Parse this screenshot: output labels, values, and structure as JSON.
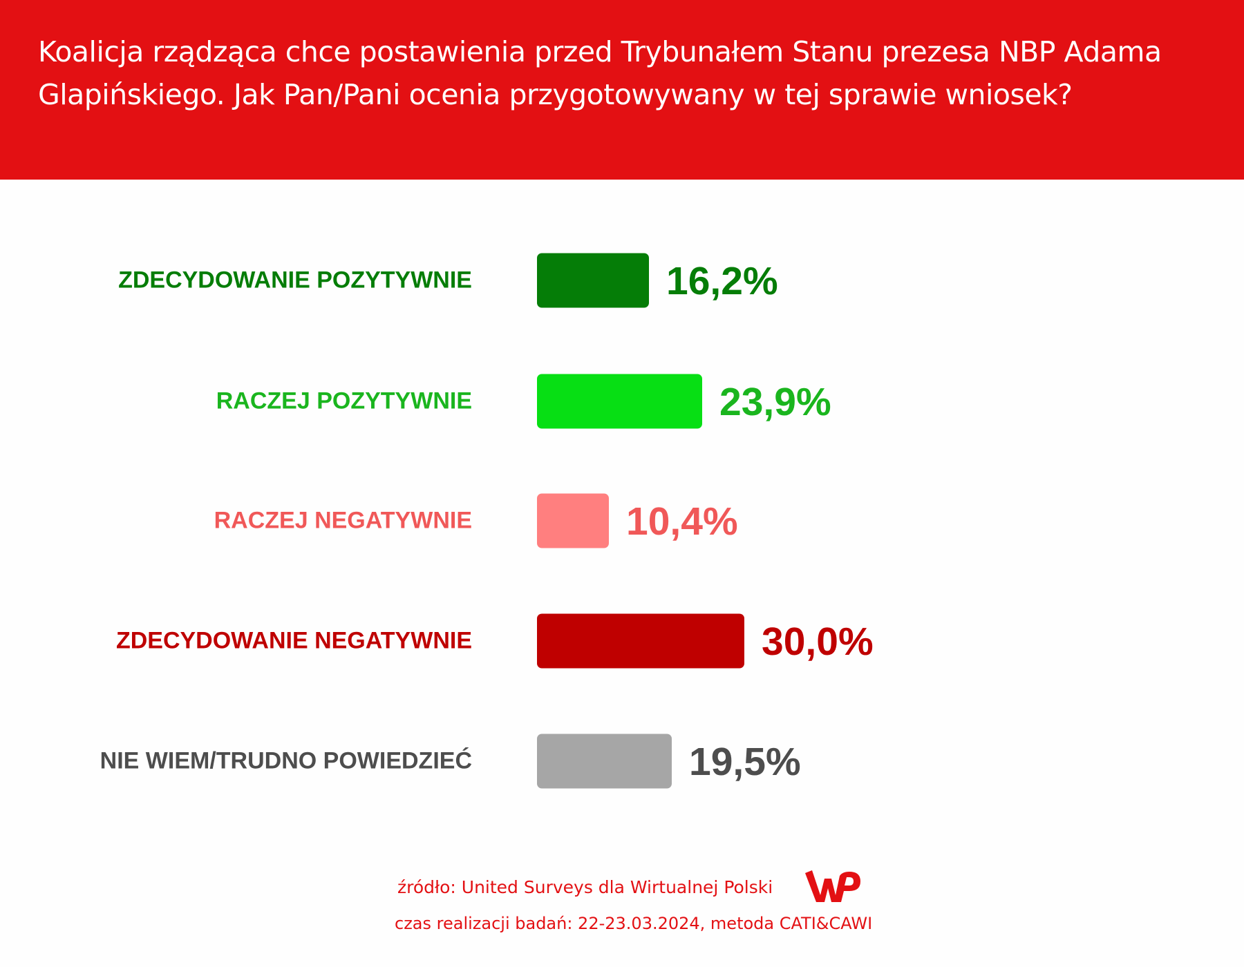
{
  "title": "Koalicja rządząca chce postawienia przed Trybunałem Stanu prezesa NBP Adama Glapińskiego. Jak Pan/Pani ocenia przygotowywany w tej sprawie wniosek?",
  "chart_data": {
    "type": "bar",
    "orientation": "horizontal",
    "title": "Koalicja rządząca chce postawienia przed Trybunałem Stanu prezesa NBP Adama Glapińskiego. Jak Pan/Pani ocenia przygotowywany w tej sprawie wniosek?",
    "categories": [
      "ZDECYDOWANIE POZYTYWNIE",
      "RACZEJ POZYTYWNIE",
      "RACZEJ NEGATYWNIE",
      "ZDECYDOWANIE NEGATYWNIE",
      "NIE WIEM/TRUDNO POWIEDZIEĆ"
    ],
    "values": [
      16.2,
      23.9,
      10.4,
      30.0,
      19.5
    ],
    "value_labels": [
      "16,2%",
      "23,9%",
      "10,4%",
      "30,0%",
      "19,5%"
    ],
    "unit": "%",
    "bar_colors": [
      "#057d07",
      "#07df14",
      "#ff7f7f",
      "#bf0000",
      "#a6a6a6"
    ],
    "text_colors": [
      "#057d07",
      "#1ab51e",
      "#f05858",
      "#bf0000",
      "#4d4d4d"
    ],
    "xlabel": "",
    "ylabel": "",
    "grid": false
  },
  "footer": {
    "source": "źródło: United Surveys dla Wirtualnej Polski",
    "details": "czas realizacji badań: 22-23.03.2024, metoda CATI&CAWI",
    "logo_text": "WP"
  },
  "colors": {
    "header": "#e31013",
    "footer_text": "#e31013"
  }
}
